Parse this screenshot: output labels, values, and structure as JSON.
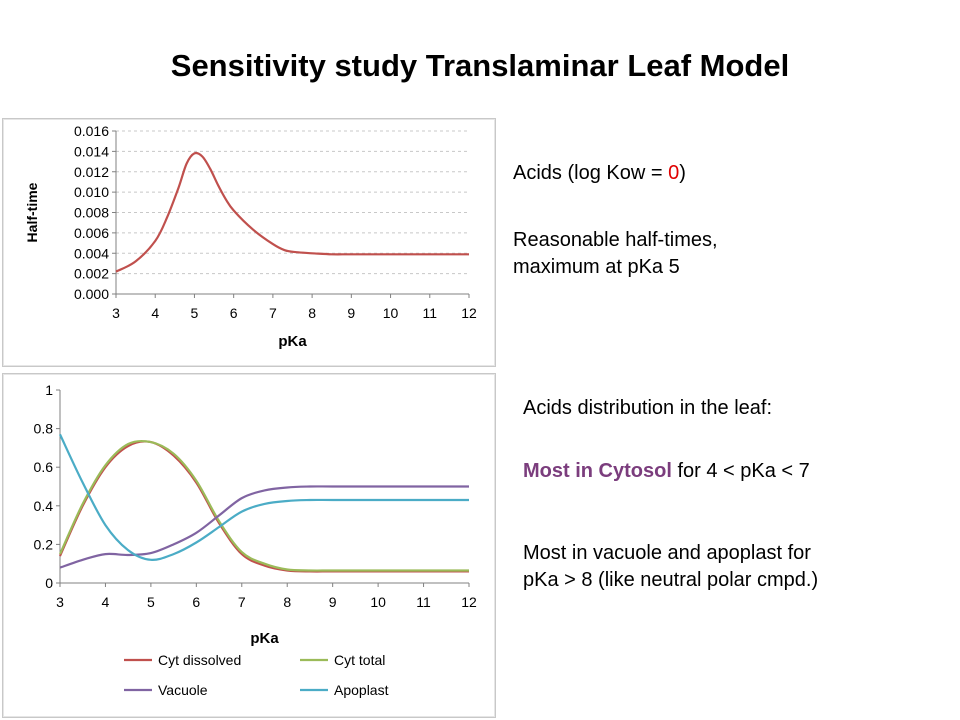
{
  "slide": {
    "title": "Sensitivity study Translaminar Leaf Model",
    "text1": {
      "prefix": "Acids  (log Kow = ",
      "value": "0",
      "suffix": ")"
    },
    "text2": {
      "line1": "Reasonable half-times,",
      "line2": "maximum at pKa 5"
    },
    "text3": "Acids distribution in the leaf:",
    "text4": {
      "highlight": "Most in Cytosol",
      "rest": " for 4 < pKa < 7"
    },
    "text5": {
      "line1": "Most in vacuole and apoplast for",
      "line2": "pKa > 8 (like neutral polar cmpd.)"
    },
    "colors": {
      "highlight_red": "#e00000",
      "highlight_purple": "#7b3d7d"
    }
  },
  "chart_data": [
    {
      "type": "line",
      "title": "",
      "xlabel": "pKa",
      "ylabel": "Half-time",
      "xlim": [
        3,
        12
      ],
      "ylim": [
        0,
        0.016
      ],
      "x_ticks": [
        "3",
        "4",
        "5",
        "6",
        "7",
        "8",
        "9",
        "10",
        "11",
        "12"
      ],
      "y_ticks": [
        "0.000",
        "0.002",
        "0.004",
        "0.006",
        "0.008",
        "0.010",
        "0.012",
        "0.014",
        "0.016"
      ],
      "grid": "horizontal dashed",
      "legend": "none",
      "series": [
        {
          "color": "#c0504d",
          "x": [
            3,
            3.5,
            4,
            4.3,
            4.6,
            4.8,
            5,
            5.2,
            5.4,
            5.6,
            5.8,
            6,
            6.5,
            7,
            7.3,
            7.6,
            8,
            8.5,
            9,
            10,
            11,
            12
          ],
          "y": [
            0.0022,
            0.0032,
            0.0052,
            0.0075,
            0.0105,
            0.0128,
            0.0138,
            0.0135,
            0.0123,
            0.0107,
            0.0093,
            0.0082,
            0.0063,
            0.0049,
            0.0043,
            0.0041,
            0.004,
            0.0039,
            0.0039,
            0.0039,
            0.0039,
            0.0039
          ]
        }
      ]
    },
    {
      "type": "line",
      "title": "",
      "xlabel": "pKa",
      "ylabel": "",
      "xlim": [
        3,
        12
      ],
      "ylim": [
        0,
        1
      ],
      "x_ticks": [
        "3",
        "4",
        "5",
        "6",
        "7",
        "8",
        "9",
        "10",
        "11",
        "12"
      ],
      "y_ticks": [
        "0",
        "0.2",
        "0.4",
        "0.6",
        "0.8",
        "1"
      ],
      "grid": "none",
      "legend": "bottom",
      "series": [
        {
          "name": "Cyt dissolved",
          "color": "#c0504d",
          "x": [
            3,
            3.5,
            4,
            4.5,
            5,
            5.5,
            6,
            6.5,
            7,
            7.5,
            8,
            8.5,
            9,
            10,
            11,
            12
          ],
          "y": [
            0.14,
            0.4,
            0.6,
            0.71,
            0.73,
            0.66,
            0.52,
            0.31,
            0.15,
            0.09,
            0.065,
            0.06,
            0.06,
            0.06,
            0.06,
            0.06
          ]
        },
        {
          "name": "Cyt total",
          "color": "#9bbb59",
          "x": [
            3,
            3.5,
            4,
            4.5,
            5,
            5.5,
            6,
            6.5,
            7,
            7.5,
            8,
            8.5,
            9,
            10,
            11,
            12
          ],
          "y": [
            0.15,
            0.41,
            0.61,
            0.72,
            0.73,
            0.67,
            0.53,
            0.32,
            0.16,
            0.1,
            0.07,
            0.065,
            0.065,
            0.065,
            0.065,
            0.065
          ]
        },
        {
          "name": "Vacuole",
          "color": "#8064a2",
          "x": [
            3,
            3.5,
            4,
            4.5,
            5,
            5.5,
            6,
            6.5,
            7,
            7.5,
            8,
            8.5,
            9,
            10,
            11,
            12
          ],
          "y": [
            0.08,
            0.12,
            0.15,
            0.145,
            0.155,
            0.2,
            0.26,
            0.35,
            0.44,
            0.48,
            0.495,
            0.5,
            0.5,
            0.5,
            0.5,
            0.5
          ]
        },
        {
          "name": "Apoplast",
          "color": "#4bacc6",
          "x": [
            3,
            3.5,
            4,
            4.5,
            5,
            5.5,
            6,
            6.5,
            7,
            7.5,
            8,
            8.5,
            9,
            10,
            11,
            12
          ],
          "y": [
            0.77,
            0.52,
            0.3,
            0.17,
            0.12,
            0.15,
            0.21,
            0.29,
            0.37,
            0.41,
            0.425,
            0.43,
            0.43,
            0.43,
            0.43,
            0.43
          ]
        }
      ]
    }
  ]
}
